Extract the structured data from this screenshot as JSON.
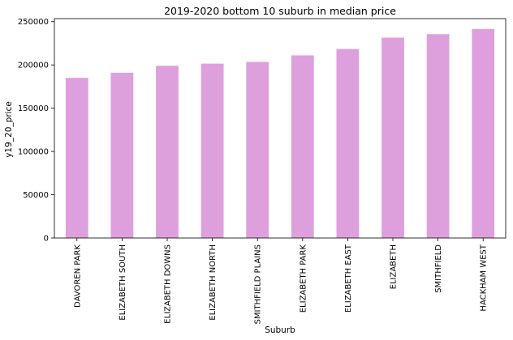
{
  "chart_data": {
    "type": "bar",
    "title": "2019-2020 bottom 10 suburb in median price",
    "xlabel": "Suburb",
    "ylabel": "y19_20_price",
    "categories": [
      "DAVOREN PARK",
      "ELIZABETH SOUTH",
      "ELIZABETH DOWNS",
      "ELIZABETH NORTH",
      "SMITHFIELD PLAINS",
      "ELIZABETH PARK",
      "ELIZABETH EAST",
      "ELIZABETH",
      "SMITHFIELD",
      "HACKHAM WEST"
    ],
    "values": [
      185000,
      191000,
      199000,
      201500,
      203500,
      211000,
      218500,
      231500,
      235500,
      241500
    ],
    "yticks": [
      0,
      50000,
      100000,
      150000,
      200000,
      250000
    ],
    "ylim": [
      0,
      253500
    ],
    "grid": false,
    "legend": "none",
    "bar_color": "#dda0dd"
  }
}
